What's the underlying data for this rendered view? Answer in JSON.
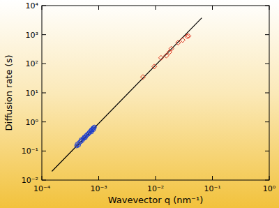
{
  "chart_data": {
    "type": "scatter",
    "x_label": "Wavevector q (nm⁻¹)",
    "y_label": "Diffusion rate (s)",
    "log": true,
    "grid": false,
    "xlim": [
      0.0001,
      1
    ],
    "ylim": [
      0.01,
      10000
    ],
    "xticks": [
      {
        "value": 0.0001,
        "label": "10⁻⁴"
      },
      {
        "value": 0.001,
        "label": "10⁻³"
      },
      {
        "value": 0.01,
        "label": "10⁻²"
      },
      {
        "value": 0.1,
        "label": "10⁻¹"
      },
      {
        "value": 1,
        "label": "10⁰"
      }
    ],
    "yticks": [
      {
        "value": 0.01,
        "label": "10⁻²"
      },
      {
        "value": 0.1,
        "label": "10⁻¹"
      },
      {
        "value": 1,
        "label": "10⁰"
      },
      {
        "value": 10,
        "label": "10¹"
      },
      {
        "value": 100,
        "label": "10²"
      },
      {
        "value": 1000,
        "label": "10³"
      },
      {
        "value": 10000,
        "label": "10⁴"
      }
    ],
    "series": [
      {
        "type": "line",
        "color": "#000000",
        "line_style": "solid",
        "x": [
          0.00015,
          0.065
        ],
        "values": [
          0.02,
          3760
        ]
      },
      {
        "type": "scatter",
        "marker": "circle",
        "color": "#1f3fd0",
        "x": [
          0.00041,
          0.00042,
          0.00044,
          0.00045,
          0.00048,
          0.00049,
          0.00051,
          0.00053,
          0.00055,
          0.00056,
          0.00058,
          0.0006,
          0.00062,
          0.00065,
          0.00067,
          0.00069,
          0.00072,
          0.00074,
          0.00077,
          0.00079,
          0.00082,
          0.00084,
          0.00081,
          0.00075
        ],
        "values": [
          0.15,
          0.17,
          0.16,
          0.19,
          0.21,
          0.24,
          0.23,
          0.26,
          0.28,
          0.3,
          0.29,
          0.33,
          0.36,
          0.38,
          0.41,
          0.44,
          0.48,
          0.52,
          0.55,
          0.6,
          0.63,
          0.66,
          0.55,
          0.46
        ]
      },
      {
        "type": "scatter",
        "marker": "diamond",
        "color": "#e0321e",
        "x": [
          0.006,
          0.0095,
          0.0125,
          0.0155,
          0.0175,
          0.019,
          0.025,
          0.03,
          0.036,
          0.038
        ],
        "values": [
          35,
          80,
          160,
          190,
          250,
          330,
          530,
          650,
          870,
          900
        ]
      }
    ]
  }
}
